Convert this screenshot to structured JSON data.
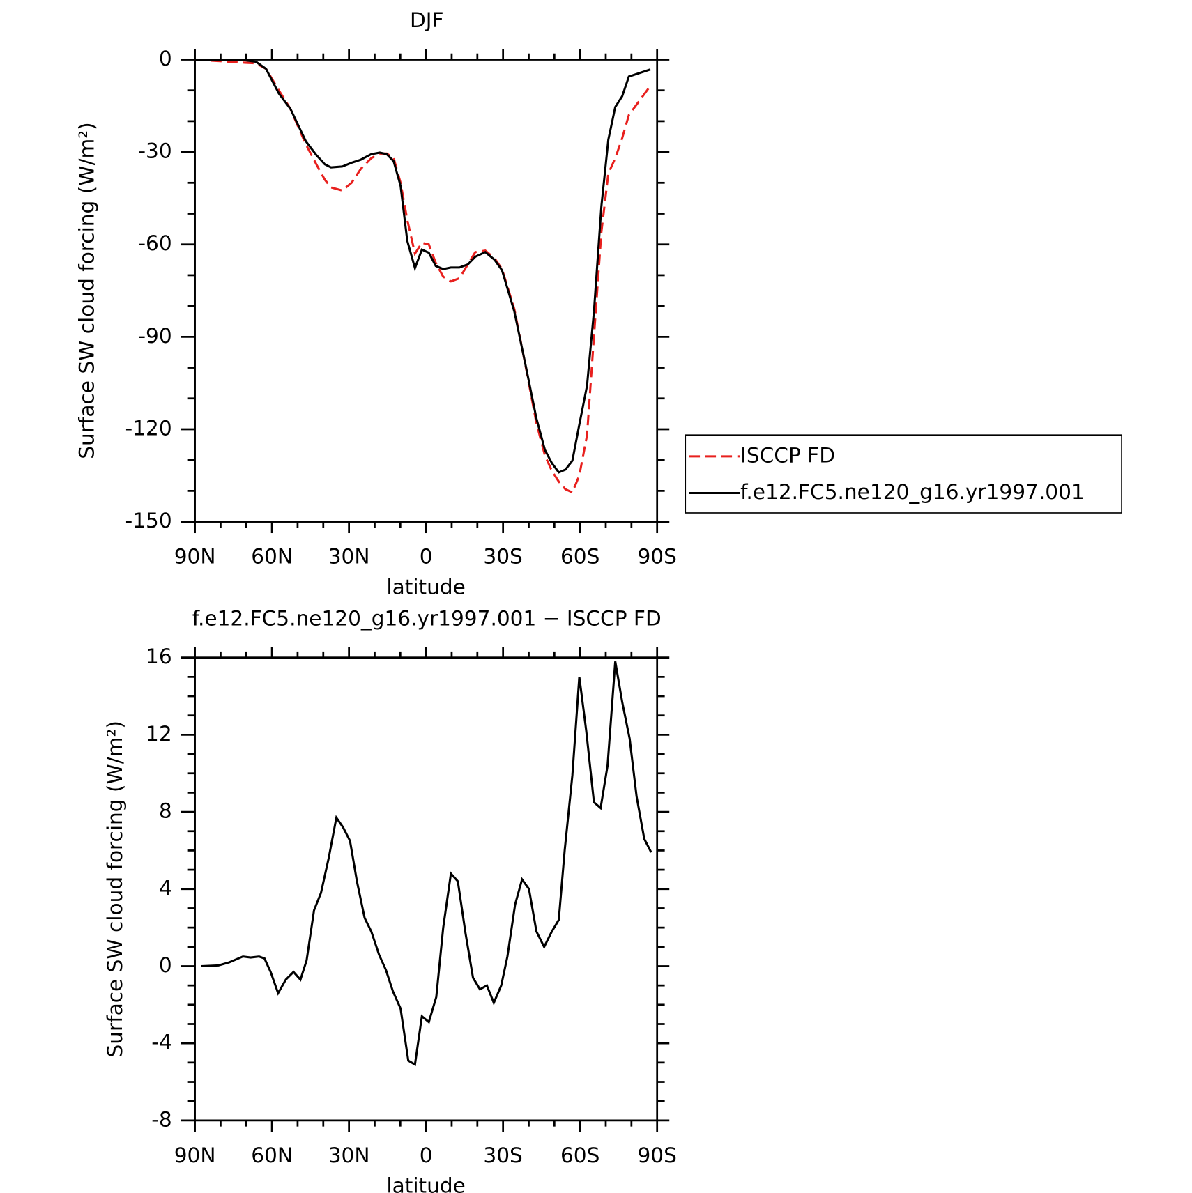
{
  "chart_data": [
    {
      "type": "line",
      "title": "DJF",
      "xlabel": "latitude",
      "ylabel": "Surface SW cloud forcing (W/m²)",
      "xlim": [
        90,
        -90
      ],
      "xticks": [
        {
          "value": 90,
          "label": "90N"
        },
        {
          "value": 60,
          "label": "60N"
        },
        {
          "value": 30,
          "label": "30N"
        },
        0,
        {
          "value": -30,
          "label": "30S"
        },
        {
          "value": -60,
          "label": "60S"
        },
        {
          "value": -90,
          "label": "90S"
        }
      ],
      "ylim": [
        -150,
        0
      ],
      "yticks": [
        -150,
        -120,
        -90,
        -60,
        -30,
        0
      ],
      "xminor": 3,
      "yminor": 3,
      "grid": false,
      "legend": "right",
      "x": [
        90,
        70.7,
        66.2,
        62.3,
        57.3,
        52.8,
        46.8,
        42.7,
        39.4,
        37,
        32.6,
        29,
        25.4,
        21.3,
        18,
        15.3,
        12.6,
        9.9,
        7.3,
        4.3,
        1.6,
        -1.1,
        -3.8,
        -6.7,
        -9.7,
        -13,
        -16.3,
        -19.2,
        -23.1,
        -26.7,
        -29.6,
        -34.4,
        -38.9,
        -43,
        -46.3,
        -49,
        -51.7,
        -54.3,
        -57,
        -59.7,
        -62.7,
        -65.4,
        -68.3,
        -71,
        -73.7,
        -76.4,
        -79,
        -87.4
      ],
      "series": [
        {
          "name": "ISCCP FD",
          "color": "#e8201e",
          "style": "dashed",
          "values": [
            0,
            -1,
            -1.2,
            -3,
            -10,
            -16,
            -27.5,
            -34,
            -39,
            -41.5,
            -42.5,
            -40,
            -35.5,
            -32,
            -30.5,
            -30.5,
            -32,
            -40,
            -52,
            -63,
            -59.5,
            -60,
            -66,
            -70.5,
            -72,
            -71,
            -66.5,
            -62.5,
            -62,
            -64.5,
            -68,
            -81,
            -100,
            -118,
            -128.5,
            -133.5,
            -137,
            -139.5,
            -140.5,
            -135,
            -122,
            -90,
            -56,
            -37,
            -32,
            -25.5,
            -18,
            -8.5
          ]
        },
        {
          "name": "f.e12.FC5.ne120_g16.yr1997.001",
          "color": "#000000",
          "style": "solid",
          "values": [
            0,
            -0.2,
            -0.7,
            -3,
            -11,
            -16,
            -26.5,
            -31,
            -34,
            -35,
            -34.7,
            -33.5,
            -32.5,
            -30.7,
            -30.2,
            -30.7,
            -33,
            -41,
            -58.8,
            -67.7,
            -61.7,
            -62.7,
            -67,
            -68,
            -67.5,
            -67.5,
            -66.5,
            -64,
            -62.5,
            -65,
            -68.4,
            -81.8,
            -99.7,
            -116.5,
            -126.7,
            -131,
            -134,
            -133.1,
            -130.2,
            -118.5,
            -105.9,
            -81.8,
            -47.6,
            -26,
            -15.4,
            -11.9,
            -5.5,
            -3.2
          ]
        }
      ]
    },
    {
      "type": "line",
      "title": "f.e12.FC5.ne120_g16.yr1997.001 − ISCCP FD",
      "xlabel": "latitude",
      "ylabel": "Surface SW cloud forcing (W/m²)",
      "xlim": [
        90,
        -90
      ],
      "xticks": [
        {
          "value": 90,
          "label": "90N"
        },
        {
          "value": 60,
          "label": "60N"
        },
        {
          "value": 30,
          "label": "30N"
        },
        0,
        {
          "value": -30,
          "label": "30S"
        },
        {
          "value": -60,
          "label": "60S"
        },
        {
          "value": -90,
          "label": "90S"
        }
      ],
      "ylim": [
        -8,
        16
      ],
      "yticks": [
        -8,
        -4,
        0,
        4,
        8,
        12,
        16
      ],
      "xminor": 3,
      "yminor": 4,
      "grid": false,
      "x": [
        87.6,
        80.8,
        76.6,
        71.3,
        68.3,
        65,
        62.9,
        60.5,
        57.6,
        54.6,
        51.6,
        48.9,
        46.5,
        43.6,
        40.9,
        37.9,
        34.9,
        32.3,
        29.6,
        26.9,
        23.9,
        21.3,
        18.3,
        15.6,
        12.9,
        9.9,
        6.9,
        4.3,
        1.6,
        -1.1,
        -4,
        -6.7,
        -9.7,
        -12.4,
        -15.4,
        -18.3,
        -21,
        -23.7,
        -26.4,
        -29.3,
        -31.7,
        -34.7,
        -37.4,
        -40.1,
        -43,
        -46,
        -49,
        -51.7,
        -54,
        -57,
        -59.7,
        -62.4,
        -65.4,
        -68,
        -70.7,
        -73.7,
        -76.4,
        -79.3,
        -82,
        -85,
        -87.7
      ],
      "series": [
        {
          "color": "#000000",
          "style": "solid",
          "values": [
            0,
            0.04,
            0.2,
            0.5,
            0.45,
            0.5,
            0.4,
            -0.3,
            -1.4,
            -0.7,
            -0.3,
            -0.7,
            0.3,
            2.9,
            3.8,
            5.6,
            7.7,
            7.2,
            6.5,
            4.4,
            2.5,
            1.8,
            0.6,
            -0.2,
            -1.3,
            -2.2,
            -4.9,
            -5.1,
            -2.6,
            -2.9,
            -1.6,
            2,
            4.8,
            4.4,
            1.7,
            -0.6,
            -1.2,
            -1,
            -1.9,
            -1,
            0.5,
            3.2,
            4.5,
            4,
            1.8,
            1,
            1.8,
            2.4,
            6,
            9.9,
            15,
            12.2,
            8.5,
            8.2,
            10.4,
            15.8,
            13.7,
            11.8,
            8.8,
            6.6,
            5.9
          ]
        }
      ]
    }
  ]
}
